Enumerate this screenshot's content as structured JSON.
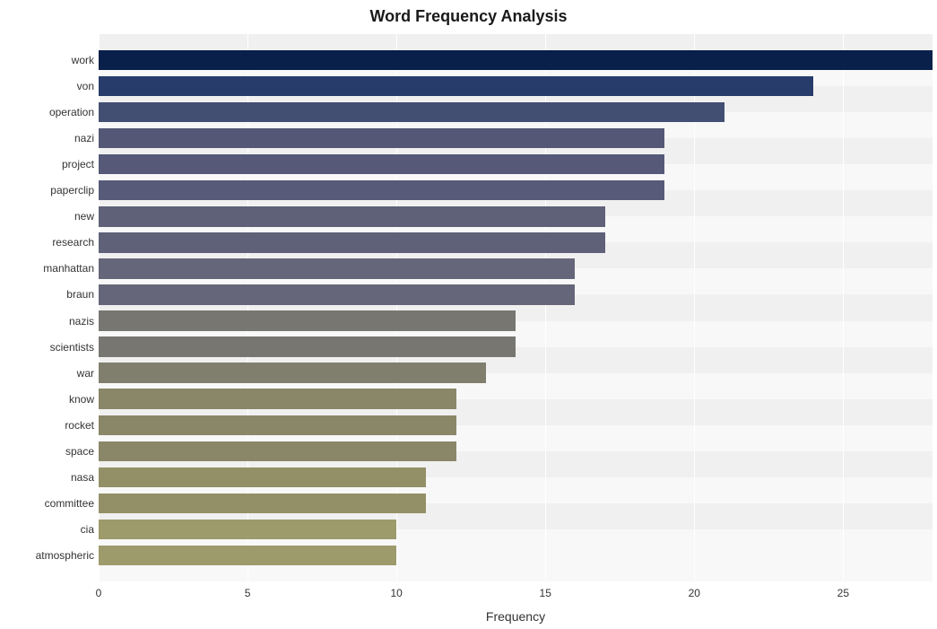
{
  "chart": {
    "type": "bar",
    "orientation": "horizontal",
    "title": "Word Frequency Analysis",
    "title_fontsize": 18,
    "title_fontweight": "bold",
    "title_color": "#1a1a1a",
    "xlabel": "Frequency",
    "xlabel_fontsize": 14,
    "xlabel_color": "#333333",
    "ylabel_fontsize": 12,
    "ylabel_color": "#333333",
    "xtick_fontsize": 12,
    "xtick_color": "#333333",
    "background_color": "#ffffff",
    "plot_bg_color": "#f8f8f8",
    "stripe_color": "#f0f0f0",
    "grid_color": "#ffffff",
    "xlim": [
      0,
      28
    ],
    "xtick_step": 5,
    "xticks": [
      0,
      5,
      10,
      15,
      20,
      25
    ],
    "bar_fill_ratio": 0.77,
    "categories": [
      "work",
      "von",
      "operation",
      "nazi",
      "project",
      "paperclip",
      "new",
      "research",
      "manhattan",
      "braun",
      "nazis",
      "scientists",
      "war",
      "know",
      "rocket",
      "space",
      "nasa",
      "committee",
      "cia",
      "atmospheric"
    ],
    "values": [
      28,
      24,
      21,
      19,
      19,
      19,
      17,
      17,
      16,
      16,
      14,
      14,
      13,
      12,
      12,
      12,
      11,
      11,
      10,
      10
    ],
    "bar_colors": [
      "#08204a",
      "#273c6a",
      "#434f72",
      "#545876",
      "#565a78",
      "#575b79",
      "#5f6179",
      "#5f6179",
      "#66667a",
      "#66667a",
      "#777671",
      "#777671",
      "#807e6d",
      "#8a8769",
      "#8a8769",
      "#8a8769",
      "#939067",
      "#939067",
      "#9d9a6b",
      "#9d9a6b"
    ]
  }
}
